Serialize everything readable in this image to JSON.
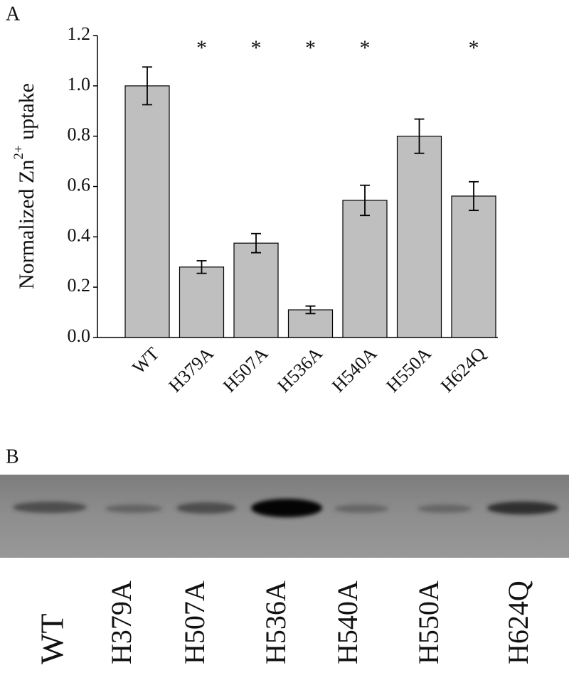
{
  "chart_data": {
    "type": "bar",
    "panel_label": "A",
    "ylabel": [
      "Normalized Zn",
      "2+",
      " uptake"
    ],
    "categories": [
      "WT",
      "H379A",
      "H507A",
      "H536A",
      "H540A",
      "H550A",
      "H624Q"
    ],
    "values": [
      1.0,
      0.28,
      0.375,
      0.11,
      0.545,
      0.8,
      0.562
    ],
    "errors": [
      0.075,
      0.025,
      0.038,
      0.015,
      0.06,
      0.068,
      0.057
    ],
    "significance_labels": [
      null,
      "*",
      "*",
      "*",
      "*",
      null,
      "*"
    ],
    "color": "#bfbfbf",
    "ylim": [
      0,
      1.2
    ],
    "yticks": [
      {
        "value": 0,
        "label": "0.0"
      },
      {
        "value": 0.2,
        "label": "0.2"
      },
      {
        "value": 0.4,
        "label": "0.4"
      },
      {
        "value": 0.6,
        "label": "0.6"
      },
      {
        "value": 0.8,
        "label": "0.8"
      },
      {
        "value": 1,
        "label": "1.0"
      },
      {
        "value": 1.2,
        "label": "1.2"
      }
    ]
  },
  "blot": {
    "label": "B",
    "lanes": [
      "WT",
      "H379A",
      "H507A",
      "H536A",
      "H540A",
      "H550A",
      "H624Q"
    ]
  }
}
